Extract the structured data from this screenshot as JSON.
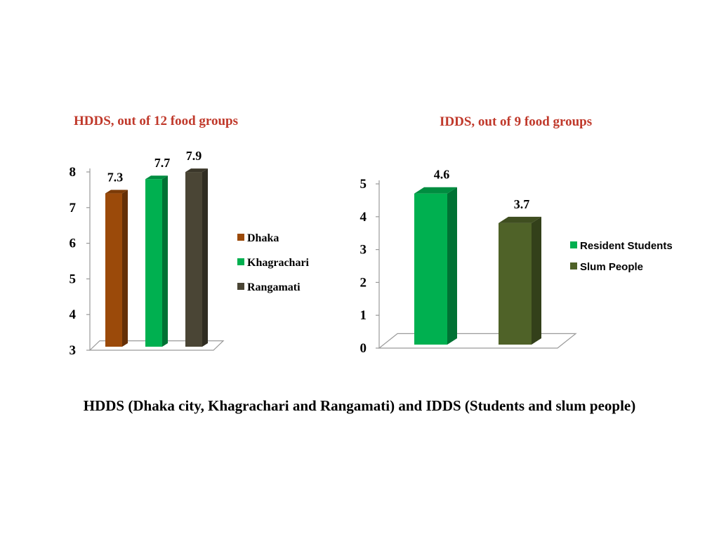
{
  "caption": "HDDS (Dhaka city, Khagrachari and Rangamati) and IDDS (Students and slum people)",
  "chart_data": [
    {
      "type": "bar",
      "title": "HDDS, out of 12 food groups",
      "categories": [
        "Dhaka",
        "Khagrachari",
        "Rangamati"
      ],
      "values": [
        7.3,
        7.7,
        7.9
      ],
      "data_labels": [
        "7.3",
        "7.7",
        "7.9"
      ],
      "colors": [
        "#9b4a0a",
        "#00b050",
        "#4a4535"
      ],
      "ylim": [
        3,
        8
      ],
      "yticks": [
        "3",
        "4",
        "5",
        "6",
        "7",
        "8"
      ],
      "legend": [
        "Dhaka",
        "Khagrachari",
        "Rangamati"
      ],
      "legend_position": "right",
      "grid": false,
      "style": "3d-column"
    },
    {
      "type": "bar",
      "title": "IDDS, out of 9 food groups",
      "categories": [
        "Resident Students",
        "Slum People"
      ],
      "values": [
        4.6,
        3.7
      ],
      "data_labels": [
        "4.6",
        "3.7"
      ],
      "colors": [
        "#00b050",
        "#4f6228"
      ],
      "ylim": [
        0,
        5
      ],
      "yticks": [
        "0",
        "1",
        "2",
        "3",
        "4",
        "5"
      ],
      "legend": [
        "Resident Students",
        "Slum People"
      ],
      "legend_position": "right",
      "grid": false,
      "style": "3d-column"
    }
  ]
}
